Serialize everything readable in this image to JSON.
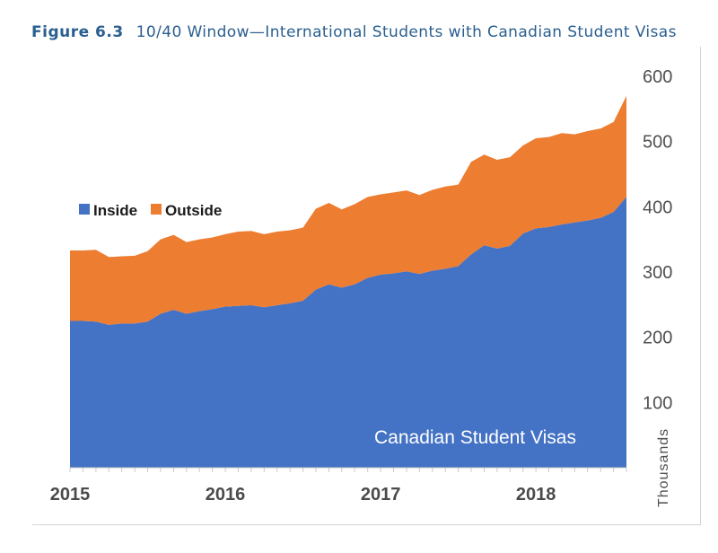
{
  "figure": {
    "label": "Figure 6.3",
    "title": "10/40 Window—International Students with Canadian Student Visas"
  },
  "chart_data": {
    "type": "area",
    "stacked": true,
    "title": "10/40 Window—International Students with Canadian Student Visas",
    "ylabel": "Thousands",
    "xlabel": "",
    "annotation": "Canadian Student Visas",
    "ylim": [
      0,
      600
    ],
    "yticks": [
      100,
      200,
      300,
      400,
      500,
      600
    ],
    "y_axis_position": "right",
    "x_tick_labels": [
      {
        "label": "2015",
        "x": 2015.0
      },
      {
        "label": "2016",
        "x": 2016.0
      },
      {
        "label": "2017",
        "x": 2017.0
      },
      {
        "label": "2018",
        "x": 2018.0
      }
    ],
    "xlim": [
      2015.0,
      2018.583
    ],
    "legend_position": "upper-left",
    "grid": false,
    "x": [
      2015.0,
      2015.083,
      2015.167,
      2015.25,
      2015.333,
      2015.417,
      2015.5,
      2015.583,
      2015.667,
      2015.75,
      2015.833,
      2015.917,
      2016.0,
      2016.083,
      2016.167,
      2016.25,
      2016.333,
      2016.417,
      2016.5,
      2016.583,
      2016.667,
      2016.75,
      2016.833,
      2016.917,
      2017.0,
      2017.083,
      2017.167,
      2017.25,
      2017.333,
      2017.417,
      2017.5,
      2017.583,
      2017.667,
      2017.75,
      2017.833,
      2017.917,
      2018.0,
      2018.083,
      2018.167,
      2018.25,
      2018.333,
      2018.417,
      2018.5,
      2018.583
    ],
    "series": [
      {
        "name": "Inside",
        "color": "#4472c4",
        "values": [
          225,
          225,
          224,
          219,
          221,
          221,
          224,
          236,
          242,
          236,
          240,
          243,
          247,
          248,
          249,
          246,
          249,
          252,
          256,
          273,
          281,
          276,
          281,
          291,
          296,
          298,
          301,
          297,
          302,
          305,
          309,
          327,
          341,
          336,
          340,
          359,
          367,
          369,
          373,
          376,
          379,
          383,
          392,
          415
        ]
      },
      {
        "name": "Outside",
        "color": "#ed7d31",
        "values": [
          108,
          108,
          110,
          104,
          103,
          104,
          108,
          114,
          115,
          110,
          110,
          110,
          111,
          114,
          114,
          112,
          113,
          112,
          112,
          124,
          125,
          120,
          123,
          124,
          123,
          124,
          124,
          121,
          124,
          126,
          125,
          142,
          139,
          136,
          136,
          135,
          138,
          138,
          140,
          135,
          137,
          137,
          138,
          155
        ]
      }
    ]
  }
}
